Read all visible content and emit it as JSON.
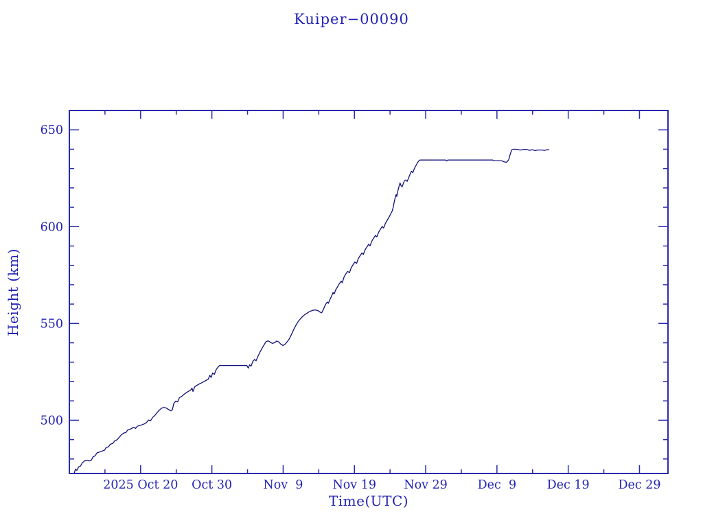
{
  "colors": {
    "text": "#2222b4",
    "axis": "#2a2aad",
    "line": "#10107a",
    "background": "#ffffff"
  },
  "chart_data": {
    "type": "line",
    "title": "Kuiper−00090",
    "xlabel": "Time(UTC)",
    "ylabel": "Height (km)",
    "grid": false,
    "legend": "none",
    "x_range_days": [
      0,
      84
    ],
    "x_major_ticks": {
      "days": [
        10,
        20,
        30,
        40,
        50,
        60,
        70,
        80
      ],
      "labels": [
        "2025 Oct 20",
        "Oct 30",
        "Nov  9",
        "Nov 19",
        "Nov 29",
        "Dec  9",
        "Dec 19",
        "Dec 29"
      ]
    },
    "x_minor_tick_days": [
      5,
      15,
      25,
      35,
      45,
      55,
      65,
      75
    ],
    "y_range": [
      472.5,
      660
    ],
    "y_major_ticks": [
      500,
      550,
      600,
      650
    ],
    "y_minor_step": 10,
    "series": [
      {
        "name": "height-km-vs-time",
        "points": [
          [
            0.72,
            473.0
          ],
          [
            0.85,
            474.7
          ],
          [
            1.05,
            474.1
          ],
          [
            1.3,
            475.9
          ],
          [
            1.55,
            476.3
          ],
          [
            1.8,
            477.9
          ],
          [
            2.1,
            478.9
          ],
          [
            2.45,
            479.3
          ],
          [
            2.8,
            479.0
          ],
          [
            3.1,
            479.4
          ],
          [
            3.3,
            481.0
          ],
          [
            3.6,
            481.6
          ],
          [
            3.9,
            483.2
          ],
          [
            4.25,
            483.6
          ],
          [
            4.6,
            484.1
          ],
          [
            4.95,
            484.6
          ],
          [
            5.15,
            485.9
          ],
          [
            5.5,
            486.3
          ],
          [
            5.75,
            487.6
          ],
          [
            6.1,
            488.0
          ],
          [
            6.35,
            489.3
          ],
          [
            6.7,
            489.9
          ],
          [
            7.0,
            491.2
          ],
          [
            7.3,
            492.5
          ],
          [
            7.6,
            493.3
          ],
          [
            7.95,
            493.7
          ],
          [
            8.2,
            495.0
          ],
          [
            8.55,
            495.4
          ],
          [
            8.8,
            495.9
          ],
          [
            9.05,
            496.4
          ],
          [
            9.3,
            495.8
          ],
          [
            9.55,
            496.9
          ],
          [
            9.85,
            497.3
          ],
          [
            10.15,
            497.6
          ],
          [
            10.5,
            498.1
          ],
          [
            10.8,
            498.7
          ],
          [
            11.1,
            500.1
          ],
          [
            11.4,
            499.8
          ],
          [
            11.7,
            501.5
          ],
          [
            12.0,
            502.5
          ],
          [
            12.3,
            503.9
          ],
          [
            12.6,
            505.1
          ],
          [
            12.9,
            506.1
          ],
          [
            13.2,
            506.6
          ],
          [
            13.6,
            506.3
          ],
          [
            13.95,
            505.5
          ],
          [
            14.2,
            504.9
          ],
          [
            14.45,
            505.3
          ],
          [
            14.65,
            508.7
          ],
          [
            14.95,
            509.9
          ],
          [
            15.2,
            509.5
          ],
          [
            15.45,
            511.7
          ],
          [
            15.8,
            512.4
          ],
          [
            16.1,
            513.4
          ],
          [
            16.45,
            514.3
          ],
          [
            16.75,
            515.0
          ],
          [
            17.0,
            515.5
          ],
          [
            17.2,
            516.6
          ],
          [
            17.35,
            514.9
          ],
          [
            17.6,
            517.3
          ],
          [
            17.9,
            518.0
          ],
          [
            18.25,
            518.8
          ],
          [
            18.6,
            519.4
          ],
          [
            18.95,
            520.1
          ],
          [
            19.25,
            520.7
          ],
          [
            19.5,
            521.2
          ],
          [
            19.7,
            523.2
          ],
          [
            19.9,
            522.1
          ],
          [
            20.1,
            524.4
          ],
          [
            20.35,
            523.7
          ],
          [
            20.6,
            526.1
          ],
          [
            20.85,
            527.4
          ],
          [
            21.1,
            528.3
          ],
          [
            24.9,
            528.3
          ],
          [
            25.1,
            526.9
          ],
          [
            25.3,
            528.6
          ],
          [
            25.5,
            527.9
          ],
          [
            25.75,
            530.4
          ],
          [
            26.0,
            531.4
          ],
          [
            26.2,
            530.7
          ],
          [
            26.5,
            533.3
          ],
          [
            26.75,
            535.2
          ],
          [
            27.0,
            536.9
          ],
          [
            27.3,
            538.8
          ],
          [
            27.6,
            540.6
          ],
          [
            27.9,
            541.0
          ],
          [
            28.2,
            540.3
          ],
          [
            28.5,
            539.7
          ],
          [
            28.8,
            540.1
          ],
          [
            29.1,
            540.9
          ],
          [
            29.4,
            540.4
          ],
          [
            29.7,
            539.2
          ],
          [
            30.0,
            538.6
          ],
          [
            30.3,
            539.4
          ],
          [
            30.6,
            540.7
          ],
          [
            30.9,
            542.3
          ],
          [
            31.2,
            544.6
          ],
          [
            31.5,
            547.0
          ],
          [
            31.8,
            549.1
          ],
          [
            32.1,
            550.9
          ],
          [
            32.4,
            552.3
          ],
          [
            32.7,
            553.5
          ],
          [
            33.0,
            554.5
          ],
          [
            33.35,
            555.3
          ],
          [
            33.7,
            556.1
          ],
          [
            34.1,
            556.7
          ],
          [
            34.5,
            557.0
          ],
          [
            34.9,
            556.6
          ],
          [
            35.15,
            555.9
          ],
          [
            35.4,
            555.5
          ],
          [
            35.6,
            556.9
          ],
          [
            35.8,
            558.6
          ],
          [
            36.0,
            560.1
          ],
          [
            36.2,
            561.1
          ],
          [
            36.35,
            560.4
          ],
          [
            36.6,
            562.6
          ],
          [
            36.8,
            564.1
          ],
          [
            37.0,
            566.0
          ],
          [
            37.15,
            565.2
          ],
          [
            37.4,
            567.5
          ],
          [
            37.65,
            569.0
          ],
          [
            37.9,
            570.6
          ],
          [
            38.15,
            571.8
          ],
          [
            38.3,
            571.0
          ],
          [
            38.55,
            574.0
          ],
          [
            38.8,
            575.6
          ],
          [
            39.05,
            576.9
          ],
          [
            39.3,
            576.2
          ],
          [
            39.55,
            578.8
          ],
          [
            39.8,
            580.3
          ],
          [
            40.05,
            581.7
          ],
          [
            40.3,
            581.0
          ],
          [
            40.55,
            583.5
          ],
          [
            40.8,
            585.0
          ],
          [
            41.05,
            586.4
          ],
          [
            41.25,
            585.6
          ],
          [
            41.5,
            588.0
          ],
          [
            41.75,
            589.5
          ],
          [
            42.0,
            590.9
          ],
          [
            42.2,
            590.1
          ],
          [
            42.45,
            592.6
          ],
          [
            42.7,
            594.1
          ],
          [
            42.95,
            595.5
          ],
          [
            43.15,
            594.7
          ],
          [
            43.4,
            597.1
          ],
          [
            43.65,
            598.6
          ],
          [
            43.9,
            600.1
          ],
          [
            44.1,
            599.3
          ],
          [
            44.35,
            601.7
          ],
          [
            44.6,
            603.3
          ],
          [
            44.85,
            604.9
          ],
          [
            45.05,
            606.3
          ],
          [
            45.3,
            608.1
          ],
          [
            45.45,
            610.1
          ],
          [
            45.55,
            612.2
          ],
          [
            45.7,
            614.6
          ],
          [
            45.85,
            616.6
          ],
          [
            45.95,
            615.6
          ],
          [
            46.1,
            618.6
          ],
          [
            46.25,
            620.6
          ],
          [
            46.4,
            622.6
          ],
          [
            46.55,
            621.1
          ],
          [
            46.7,
            620.6
          ],
          [
            46.85,
            622.1
          ],
          [
            47.0,
            623.6
          ],
          [
            47.2,
            624.1
          ],
          [
            47.4,
            623.4
          ],
          [
            47.6,
            625.1
          ],
          [
            47.8,
            627.0
          ],
          [
            48.0,
            628.6
          ],
          [
            48.2,
            627.9
          ],
          [
            48.4,
            629.9
          ],
          [
            48.6,
            631.3
          ],
          [
            48.8,
            632.7
          ],
          [
            49.0,
            633.8
          ],
          [
            49.2,
            634.4
          ],
          [
            52.8,
            634.4
          ],
          [
            52.95,
            633.9
          ],
          [
            53.1,
            634.4
          ],
          [
            59.4,
            634.4
          ],
          [
            59.55,
            634.1
          ],
          [
            60.7,
            634.0
          ],
          [
            61.0,
            633.5
          ],
          [
            61.3,
            633.2
          ],
          [
            61.5,
            633.8
          ],
          [
            61.65,
            634.6
          ],
          [
            61.8,
            636.6
          ],
          [
            61.95,
            638.4
          ],
          [
            62.1,
            639.8
          ],
          [
            62.4,
            640.0
          ],
          [
            62.9,
            639.9
          ],
          [
            63.25,
            639.5
          ],
          [
            63.7,
            639.9
          ],
          [
            64.2,
            639.9
          ],
          [
            64.55,
            639.4
          ],
          [
            64.95,
            639.7
          ],
          [
            65.35,
            639.3
          ],
          [
            65.75,
            639.6
          ],
          [
            66.3,
            639.6
          ],
          [
            66.7,
            639.4
          ],
          [
            67.05,
            639.7
          ],
          [
            67.3,
            639.7
          ]
        ]
      }
    ]
  }
}
